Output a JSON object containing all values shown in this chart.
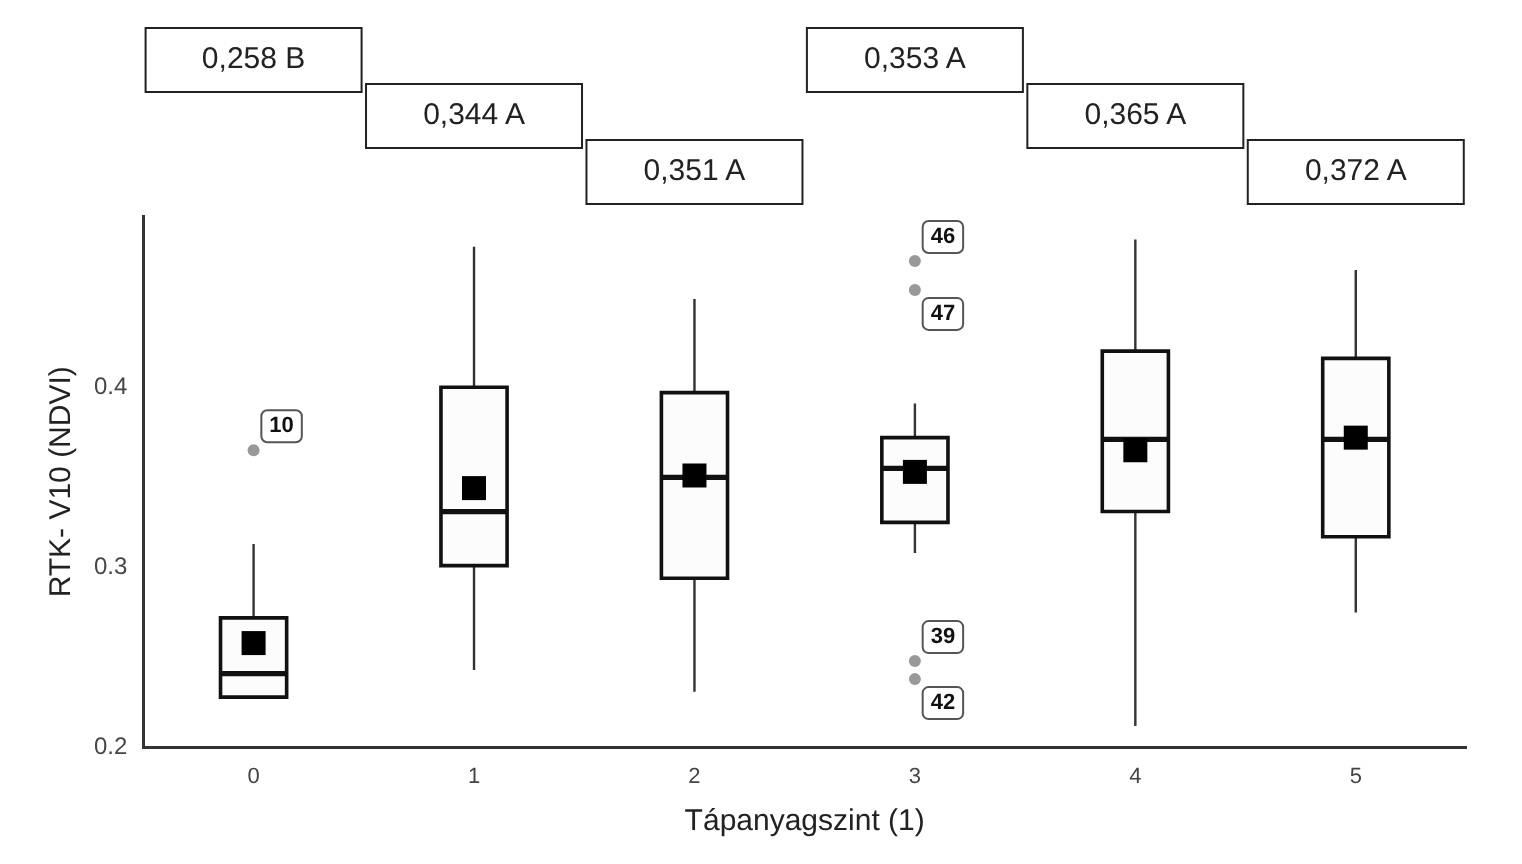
{
  "chart_data": {
    "type": "box",
    "xlabel": "Tápanyagszint (1)",
    "ylabel": "RTK- V10 (NDVI)",
    "categories": [
      "0",
      "1",
      "2",
      "3",
      "4",
      "5"
    ],
    "boxes": [
      {
        "low": 0.228,
        "q1": 0.228,
        "median": 0.241,
        "q3": 0.272,
        "high": 0.313,
        "mean": 0.258,
        "outliers": [
          0.365
        ]
      },
      {
        "low": 0.243,
        "q1": 0.301,
        "median": 0.331,
        "q3": 0.4,
        "high": 0.478,
        "mean": 0.344
      },
      {
        "low": 0.231,
        "q1": 0.294,
        "median": 0.35,
        "q3": 0.397,
        "high": 0.449,
        "mean": 0.351
      },
      {
        "low": 0.308,
        "q1": 0.325,
        "median": 0.355,
        "q3": 0.372,
        "high": 0.391,
        "mean": 0.353,
        "outliers": [
          0.47,
          0.454,
          0.248,
          0.238
        ]
      },
      {
        "low": 0.212,
        "q1": 0.331,
        "median": 0.371,
        "q3": 0.42,
        "high": 0.482,
        "mean": 0.365
      },
      {
        "low": 0.275,
        "q1": 0.317,
        "median": 0.371,
        "q3": 0.416,
        "high": 0.465,
        "mean": 0.372
      }
    ],
    "color": "#fcfcfc",
    "ylim": [
      0.2,
      0.495
    ],
    "yticks": [
      0.2,
      0.3,
      0.4
    ],
    "grid": false,
    "legend": false,
    "annotations": [
      "0,258 B",
      "0,344 A",
      "0,351 A",
      "0,353 A",
      "0,365 A",
      "0,372 A",
      "10",
      "46",
      "47",
      "39",
      "42"
    ]
  }
}
